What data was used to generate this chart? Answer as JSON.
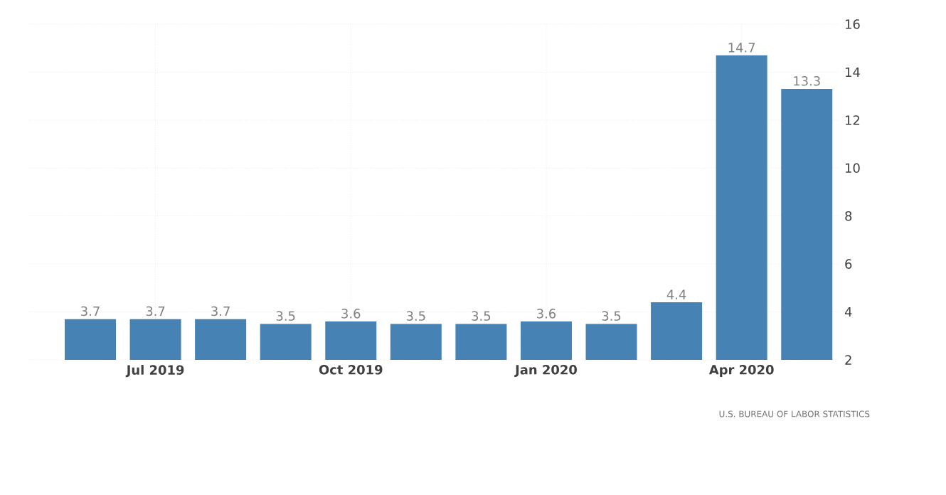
{
  "chart_data": {
    "type": "bar",
    "categories": [
      null,
      "Jul 2019",
      null,
      null,
      "Oct 2019",
      null,
      null,
      "Jan 2020",
      null,
      null,
      "Apr 2020",
      null
    ],
    "values": [
      3.7,
      3.7,
      3.7,
      3.5,
      3.6,
      3.5,
      3.5,
      3.6,
      3.5,
      4.4,
      14.7,
      13.3
    ],
    "value_labels": [
      "3.7",
      "3.7",
      "3.7",
      "3.5",
      "3.6",
      "3.5",
      "3.5",
      "3.6",
      "3.5",
      "4.4",
      "14.7",
      "13.3"
    ],
    "color": "#4682b4",
    "ylim": [
      2,
      16
    ],
    "yticks": [
      2,
      4,
      6,
      8,
      10,
      12,
      14,
      16
    ],
    "grid": true,
    "annotations": [
      "U.S. BUREAU OF LABOR STATISTICS"
    ]
  }
}
